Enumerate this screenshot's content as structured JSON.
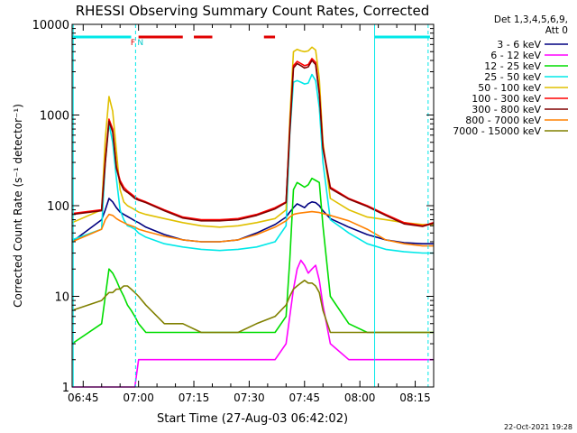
{
  "chart_data": {
    "type": "line",
    "title": "RHESSI Observing Summary Count Rates, Corrected",
    "xlabel": "Start Time (27-Aug-03 06:42:02)",
    "ylabel": "Corrected Count Rate (s⁻¹ detector⁻¹)",
    "yscale": "log",
    "ylim": [
      1,
      10000
    ],
    "xlim_minutes": [
      0,
      98
    ],
    "x_ticks": [
      {
        "m": 3,
        "label": "06:45"
      },
      {
        "m": 18,
        "label": "07:00"
      },
      {
        "m": 33,
        "label": "07:15"
      },
      {
        "m": 48,
        "label": "07:30"
      },
      {
        "m": 63,
        "label": "07:45"
      },
      {
        "m": 78,
        "label": "08:00"
      },
      {
        "m": 93,
        "label": "08:15"
      }
    ],
    "y_ticks": [
      {
        "v": 1,
        "label": "1"
      },
      {
        "v": 10,
        "label": "10"
      },
      {
        "v": 100,
        "label": "100"
      },
      {
        "v": 1000,
        "label": "1000"
      },
      {
        "v": 10000,
        "label": "10000"
      }
    ],
    "legend_header": [
      "Det 1,3,4,5,6,9,",
      "Att 0"
    ],
    "x": [
      0,
      8,
      9,
      10,
      11,
      12,
      13,
      14,
      15,
      16,
      17,
      18,
      20,
      25,
      30,
      35,
      40,
      45,
      50,
      55,
      58,
      59,
      60,
      61,
      62,
      63,
      64,
      65,
      66,
      67,
      68,
      70,
      75,
      80,
      85,
      90,
      95,
      98
    ],
    "series": [
      {
        "name": "3 - 6 keV",
        "color": "#000080",
        "values": [
          40,
          70,
          90,
          120,
          110,
          95,
          85,
          80,
          76,
          72,
          68,
          65,
          58,
          48,
          42,
          40,
          40,
          42,
          50,
          62,
          75,
          85,
          95,
          105,
          100,
          95,
          105,
          110,
          108,
          100,
          88,
          72,
          58,
          48,
          42,
          39,
          38,
          38
        ]
      },
      {
        "name": "6 - 12 keV",
        "color": "#ff00ff",
        "values": [
          1,
          1,
          1,
          1,
          1,
          1,
          1,
          1,
          1,
          1,
          1,
          2,
          2,
          2,
          2,
          2,
          2,
          2,
          2,
          2,
          3,
          6,
          12,
          20,
          25,
          22,
          18,
          20,
          22,
          15,
          8,
          3,
          2,
          2,
          2,
          2,
          2,
          2
        ]
      },
      {
        "name": "12 - 25 keV",
        "color": "#00dd00",
        "values": [
          3,
          5,
          10,
          20,
          18,
          15,
          12,
          10,
          8,
          7,
          6,
          5,
          4,
          4,
          4,
          4,
          4,
          4,
          4,
          4,
          6,
          25,
          150,
          180,
          170,
          160,
          170,
          200,
          190,
          180,
          60,
          10,
          5,
          4,
          4,
          4,
          4,
          4
        ]
      },
      {
        "name": "25 - 50 keV",
        "color": "#00e8e8",
        "values": [
          42,
          55,
          300,
          800,
          500,
          200,
          90,
          70,
          60,
          58,
          55,
          50,
          45,
          38,
          35,
          33,
          32,
          33,
          35,
          40,
          60,
          600,
          2300,
          2400,
          2300,
          2200,
          2250,
          2800,
          2400,
          1200,
          300,
          70,
          50,
          38,
          33,
          31,
          30,
          30
        ]
      },
      {
        "name": "50 - 100 keV",
        "color": "#e0c000",
        "values": [
          65,
          90,
          550,
          1600,
          1100,
          400,
          150,
          110,
          100,
          95,
          90,
          85,
          80,
          72,
          65,
          60,
          58,
          60,
          65,
          72,
          90,
          900,
          5000,
          5300,
          5100,
          5000,
          5100,
          5600,
          5200,
          2500,
          500,
          120,
          90,
          75,
          70,
          65,
          62,
          62
        ]
      },
      {
        "name": "100 - 300 keV",
        "color": "#ff0000",
        "values": [
          82,
          90,
          320,
          900,
          700,
          270,
          190,
          160,
          145,
          135,
          125,
          118,
          110,
          90,
          75,
          70,
          70,
          72,
          80,
          95,
          110,
          700,
          3500,
          3900,
          3700,
          3500,
          3600,
          4200,
          3800,
          1800,
          450,
          160,
          120,
          100,
          80,
          65,
          60,
          65
        ]
      },
      {
        "name": "300 - 800 keV",
        "color": "#800000",
        "values": [
          80,
          88,
          300,
          850,
          650,
          260,
          180,
          150,
          140,
          130,
          120,
          115,
          108,
          88,
          73,
          68,
          68,
          70,
          78,
          92,
          108,
          650,
          3300,
          3700,
          3500,
          3300,
          3400,
          4000,
          3600,
          1700,
          430,
          155,
          118,
          98,
          78,
          63,
          59,
          64
        ]
      },
      {
        "name": "800 - 7000 keV",
        "color": "#ff8000",
        "values": [
          40,
          55,
          70,
          80,
          78,
          72,
          68,
          65,
          62,
          60,
          58,
          55,
          52,
          46,
          42,
          40,
          40,
          42,
          48,
          58,
          68,
          75,
          80,
          82,
          83,
          84,
          85,
          86,
          85,
          84,
          82,
          78,
          68,
          55,
          42,
          38,
          36,
          36
        ]
      },
      {
        "name": "7000 - 15000 keV",
        "color": "#808000",
        "values": [
          7,
          9,
          10,
          11,
          11,
          12,
          12,
          13,
          13,
          12,
          11,
          10,
          8,
          5,
          5,
          4,
          4,
          4,
          5,
          6,
          8,
          10,
          12,
          13,
          14,
          15,
          14,
          14,
          13,
          11,
          7,
          4,
          4,
          4,
          4,
          4,
          4,
          4
        ]
      }
    ],
    "annotations": {
      "top_bars": [
        {
          "color": "#00e8e8",
          "x0": 0,
          "x1": 16
        },
        {
          "color": "#e00000",
          "x0": 18,
          "x1": 30
        },
        {
          "color": "#e00000",
          "x0": 33,
          "x1": 38
        },
        {
          "color": "#e00000",
          "x0": 52,
          "x1": 55
        },
        {
          "color": "#00e8e8",
          "x0": 82,
          "x1": 97
        }
      ],
      "top_labels": [
        {
          "text": "F",
          "color": "#e00000",
          "m": 16.5
        },
        {
          "text": "N",
          "color": "#00c8c8",
          "m": 18.5
        }
      ],
      "vlines": [
        {
          "m": 0.3,
          "color": "#00e8e8",
          "dashed": false
        },
        {
          "m": 17.2,
          "color": "#00e8e8",
          "dashed": true
        },
        {
          "m": 82,
          "color": "#00e8e8",
          "dashed": false
        },
        {
          "m": 96.5,
          "color": "#00e8e8",
          "dashed": true
        }
      ]
    }
  },
  "footer": {
    "date": "22-Oct-2021 19:28"
  }
}
